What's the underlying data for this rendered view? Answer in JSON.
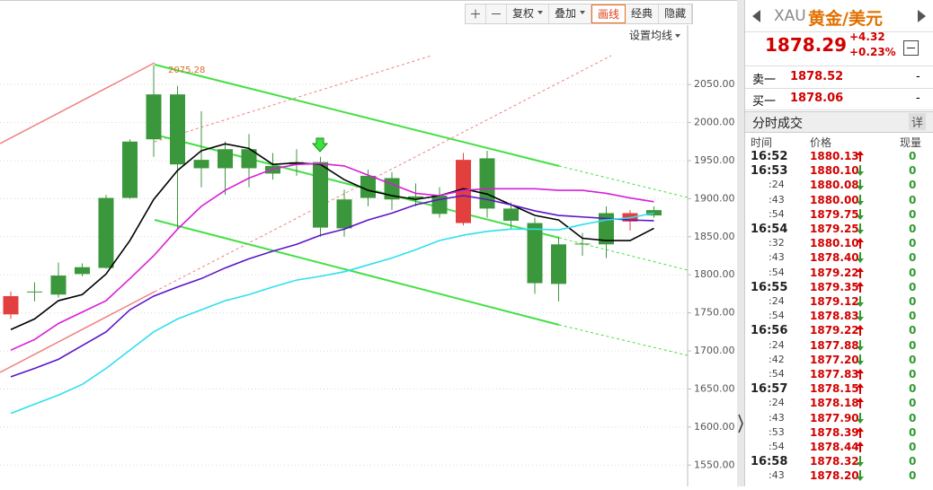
{
  "toolbar": {
    "buttons": [
      "复权",
      "叠加",
      "画线",
      "经典",
      "隐藏"
    ],
    "dropdown": [
      true,
      true,
      false,
      false,
      false
    ],
    "active": 2
  },
  "chart_data": {
    "type": "candlestick",
    "ma_setting": "设置均线",
    "annotation": "2075.28",
    "ylim": [
      1522,
      2161
    ],
    "yticks": [
      {
        "value": 1550,
        "label": "1550.00"
      },
      {
        "value": 1600,
        "label": "1600.00"
      },
      {
        "value": 1650,
        "label": "1650.00"
      },
      {
        "value": 1700,
        "label": "1700.00"
      },
      {
        "value": 1750,
        "label": "1750.00"
      },
      {
        "value": 1800,
        "label": "1800.00"
      },
      {
        "value": 1850,
        "label": "1850.00"
      },
      {
        "value": 1900,
        "label": "1900.00"
      },
      {
        "value": 1950,
        "label": "1950.00"
      },
      {
        "value": 2000,
        "label": "2000.00"
      },
      {
        "value": 2050,
        "label": "2050.00"
      }
    ],
    "grid": true,
    "up_color": "#e2403f",
    "down_color": "#3b973b",
    "open": [
      1748,
      1778,
      1799,
      1810,
      1901,
      1975,
      2037,
      2037,
      1951,
      1965,
      1965,
      1943,
      1948,
      1948,
      1899,
      1930,
      1927,
      1903,
      1904,
      1868,
      1953,
      1887,
      1868,
      1840,
      1841,
      1881,
      1870,
      1885
    ],
    "high": [
      1778,
      1790,
      1816,
      1815,
      1905,
      1978,
      2075.28,
      2048,
      2015,
      1975,
      1985,
      1960,
      1965,
      1955,
      1912,
      1938,
      1935,
      1920,
      1915,
      1960,
      1963,
      1895,
      1875,
      1850,
      1855,
      1890,
      1885,
      1890
    ],
    "low": [
      1742,
      1765,
      1770,
      1798,
      1808,
      1900,
      1955,
      1860,
      1915,
      1905,
      1915,
      1925,
      1930,
      1850,
      1850,
      1890,
      1885,
      1890,
      1875,
      1865,
      1875,
      1860,
      1775,
      1765,
      1825,
      1822,
      1858,
      1875
    ],
    "close": [
      1772,
      1777,
      1774,
      1801,
      1809,
      1901,
      1978,
      1945,
      1940,
      1940,
      1940,
      1933,
      1945,
      1862,
      1861,
      1901,
      1899,
      1900,
      1880,
      1951,
      1887,
      1871,
      1789,
      1788,
      1840,
      1840,
      1881,
      1878
    ],
    "series": [
      {
        "color": "#000000",
        "values": [
          1728,
          1742,
          1766,
          1774,
          1801,
          1845,
          1899,
          1937,
          1963,
          1972,
          1966,
          1945,
          1947,
          1945,
          1925,
          1911,
          1904,
          1899,
          1904,
          1913,
          1906,
          1892,
          1878,
          1872,
          1848,
          1845,
          1845,
          1861
        ]
      },
      {
        "color": "#d81ed8",
        "values": [
          1701,
          1715,
          1736,
          1751,
          1766,
          1795,
          1825,
          1860,
          1890,
          1911,
          1927,
          1939,
          1945,
          1946,
          1943,
          1931,
          1919,
          1907,
          1904,
          1911,
          1913,
          1913,
          1913,
          1911,
          1911,
          1907,
          1901,
          1896
        ]
      },
      {
        "color": "#5a16c8",
        "values": [
          1666,
          1677,
          1689,
          1707,
          1725,
          1754,
          1772,
          1784,
          1795,
          1809,
          1821,
          1831,
          1840,
          1852,
          1860,
          1872,
          1881,
          1892,
          1899,
          1904,
          1899,
          1892,
          1884,
          1878,
          1876,
          1874,
          1872,
          1871
        ]
      },
      {
        "color": "#2ee0ee",
        "values": [
          1618,
          1630,
          1642,
          1656,
          1677,
          1701,
          1725,
          1742,
          1754,
          1766,
          1774,
          1784,
          1793,
          1798,
          1804,
          1813,
          1822,
          1833,
          1845,
          1852,
          1857,
          1860,
          1860,
          1859,
          1866,
          1872,
          1875,
          1881
        ]
      }
    ]
  },
  "quote": {
    "symbol": "XAU",
    "name": "黄金/美元",
    "price": "1878.29",
    "change": "+4.32",
    "change_pct": "+0.23%"
  },
  "book": [
    {
      "label": "卖一",
      "price": "1878.52",
      "vol": "-"
    },
    {
      "label": "买一",
      "price": "1878.06",
      "vol": "-"
    }
  ],
  "trades": {
    "title": "分时成交",
    "detail": "详",
    "columns": [
      "时间",
      "价格",
      "现量"
    ],
    "rows": [
      {
        "time": "16:52",
        "price": "1880.13",
        "dir": "up",
        "vol": "0"
      },
      {
        "time": "16:53",
        "price": "1880.10",
        "dir": "down",
        "vol": "0"
      },
      {
        "time": ":24",
        "price": "1880.08",
        "dir": "down",
        "vol": "0"
      },
      {
        "time": ":43",
        "price": "1880.00",
        "dir": "down",
        "vol": "0"
      },
      {
        "time": ":54",
        "price": "1879.75",
        "dir": "down",
        "vol": "0"
      },
      {
        "time": "16:54",
        "price": "1879.25",
        "dir": "down",
        "vol": "0"
      },
      {
        "time": ":32",
        "price": "1880.10",
        "dir": "up",
        "vol": "0"
      },
      {
        "time": ":43",
        "price": "1878.40",
        "dir": "down",
        "vol": "0"
      },
      {
        "time": ":54",
        "price": "1879.22",
        "dir": "up",
        "vol": "0"
      },
      {
        "time": "16:55",
        "price": "1879.35",
        "dir": "up",
        "vol": "0"
      },
      {
        "time": ":24",
        "price": "1879.12",
        "dir": "down",
        "vol": "0"
      },
      {
        "time": ":54",
        "price": "1878.83",
        "dir": "down",
        "vol": "0"
      },
      {
        "time": "16:56",
        "price": "1879.22",
        "dir": "up",
        "vol": "0"
      },
      {
        "time": ":24",
        "price": "1877.88",
        "dir": "down",
        "vol": "0"
      },
      {
        "time": ":42",
        "price": "1877.20",
        "dir": "down",
        "vol": "0"
      },
      {
        "time": ":54",
        "price": "1877.83",
        "dir": "up",
        "vol": "0"
      },
      {
        "time": "16:57",
        "price": "1878.15",
        "dir": "up",
        "vol": "0"
      },
      {
        "time": ":24",
        "price": "1878.18",
        "dir": "up",
        "vol": "0"
      },
      {
        "time": ":43",
        "price": "1877.90",
        "dir": "down",
        "vol": "0"
      },
      {
        "time": ":53",
        "price": "1878.39",
        "dir": "up",
        "vol": "0"
      },
      {
        "time": ":54",
        "price": "1878.44",
        "dir": "up",
        "vol": "0"
      },
      {
        "time": "16:58",
        "price": "1878.32",
        "dir": "down",
        "vol": "0"
      },
      {
        "time": ":43",
        "price": "1878.20",
        "dir": "down",
        "vol": "0"
      }
    ]
  }
}
